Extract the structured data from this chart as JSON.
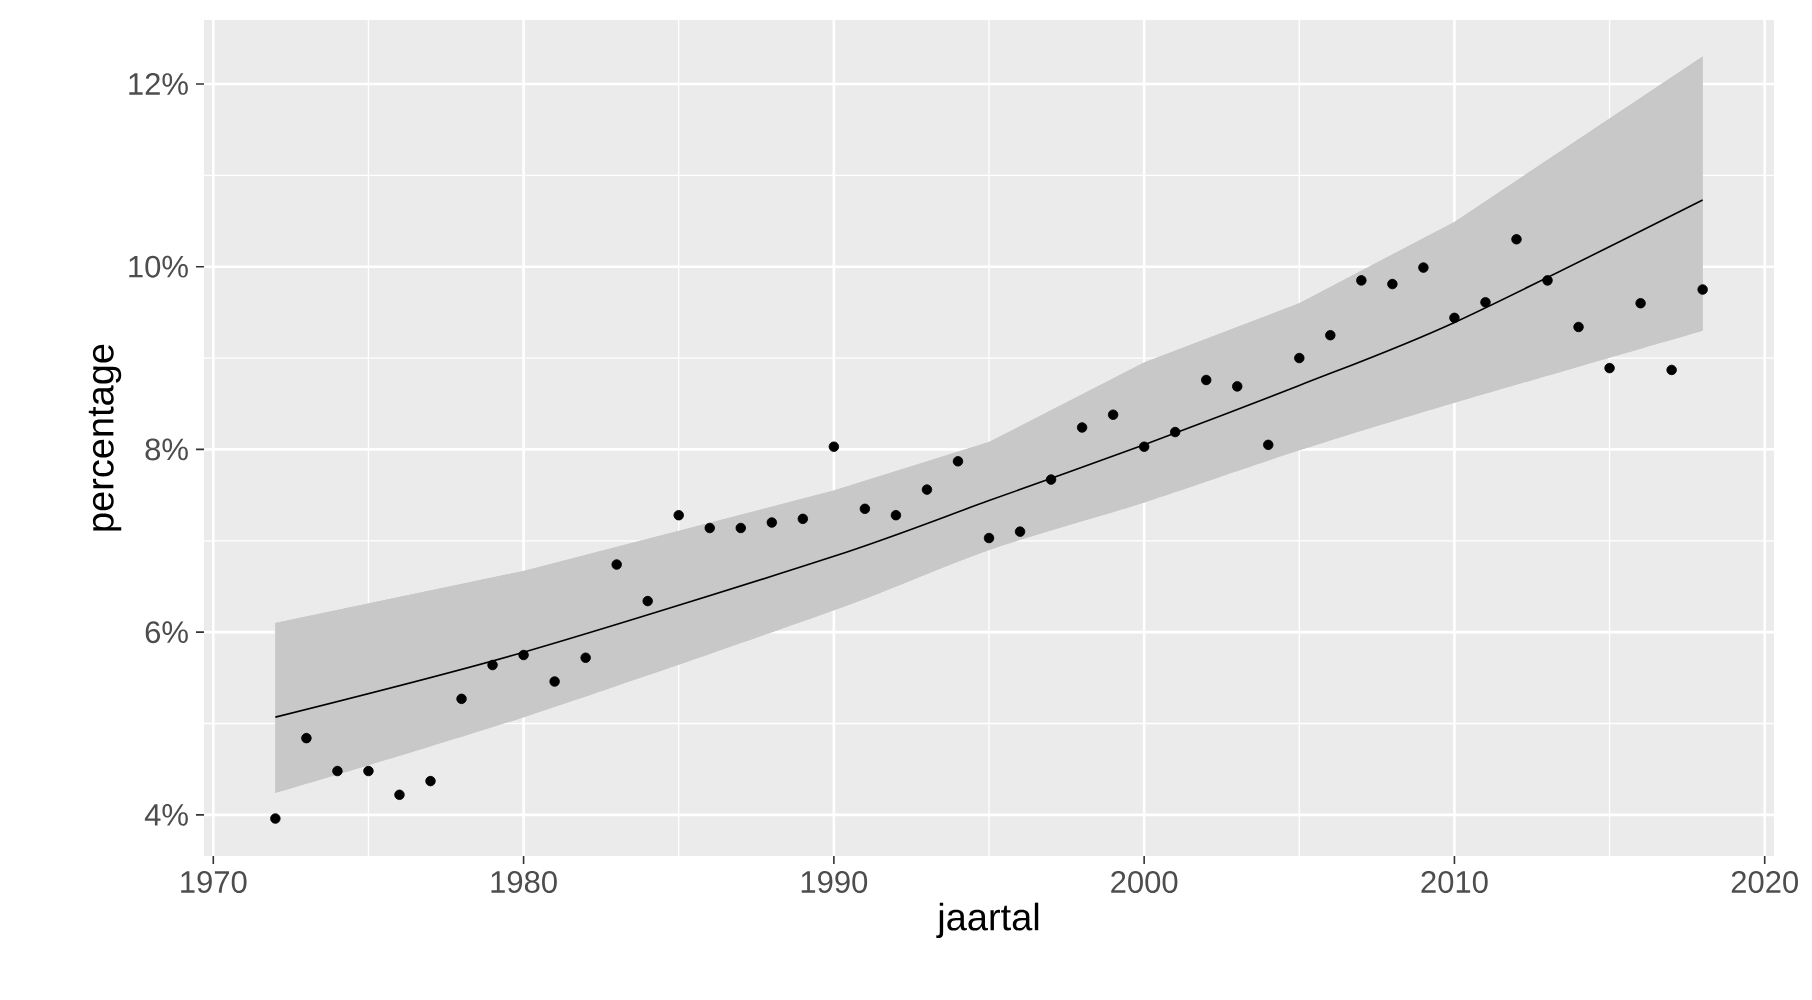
{
  "chart_data": {
    "type": "scatter",
    "xlabel": "jaartal",
    "ylabel": "percentage",
    "xlim": [
      1969.7,
      2020.3
    ],
    "xticks": [
      1970,
      1980,
      1990,
      2000,
      2010,
      2020
    ],
    "ylim": [
      3.55,
      12.7
    ],
    "yticks": [
      {
        "value": 4,
        "label": "4%"
      },
      {
        "value": 6,
        "label": "6%"
      },
      {
        "value": 8,
        "label": "8%"
      },
      {
        "value": 10,
        "label": "10%"
      },
      {
        "value": 12,
        "label": "12%"
      }
    ],
    "grid": true,
    "series": [
      {
        "color": "#000000",
        "marker": "circle",
        "x": [
          1972,
          1973,
          1974,
          1975,
          1976,
          1977,
          1978,
          1979,
          1980,
          1981,
          1982,
          1983,
          1984,
          1985,
          1986,
          1987,
          1988,
          1989,
          1990,
          1991,
          1992,
          1993,
          1994,
          1995,
          1996,
          1997,
          1998,
          1999,
          2000,
          2001,
          2002,
          2003,
          2004,
          2005,
          2006,
          2007,
          2008,
          2009,
          2010,
          2011,
          2012,
          2013,
          2014,
          2015,
          2016,
          2017,
          2018
        ],
        "values": [
          3.96,
          4.84,
          4.48,
          4.48,
          4.22,
          4.37,
          5.27,
          5.64,
          5.75,
          5.46,
          5.72,
          6.74,
          6.34,
          7.28,
          7.14,
          7.14,
          7.2,
          7.24,
          8.03,
          7.35,
          7.28,
          7.56,
          7.87,
          7.03,
          7.1,
          7.67,
          8.24,
          8.38,
          8.03,
          8.19,
          8.76,
          8.69,
          8.05,
          9.0,
          9.25,
          9.85,
          9.81,
          9.99,
          9.44,
          9.61,
          10.3,
          9.85,
          9.34,
          8.89,
          9.6,
          8.87,
          9.75
        ]
      },
      {
        "type": "line",
        "color": "#000000",
        "x": [
          1972,
          1980,
          1990,
          1995,
          2000,
          2005,
          2010,
          2018
        ],
        "values": [
          5.07,
          5.78,
          6.83,
          7.44,
          8.05,
          8.7,
          9.39,
          10.73
        ],
        "lower": [
          4.24,
          5.07,
          6.24,
          6.9,
          7.42,
          7.99,
          8.51,
          9.3
        ],
        "upper": [
          6.1,
          6.67,
          7.55,
          8.08,
          8.95,
          9.6,
          10.49,
          12.3
        ]
      }
    ]
  }
}
